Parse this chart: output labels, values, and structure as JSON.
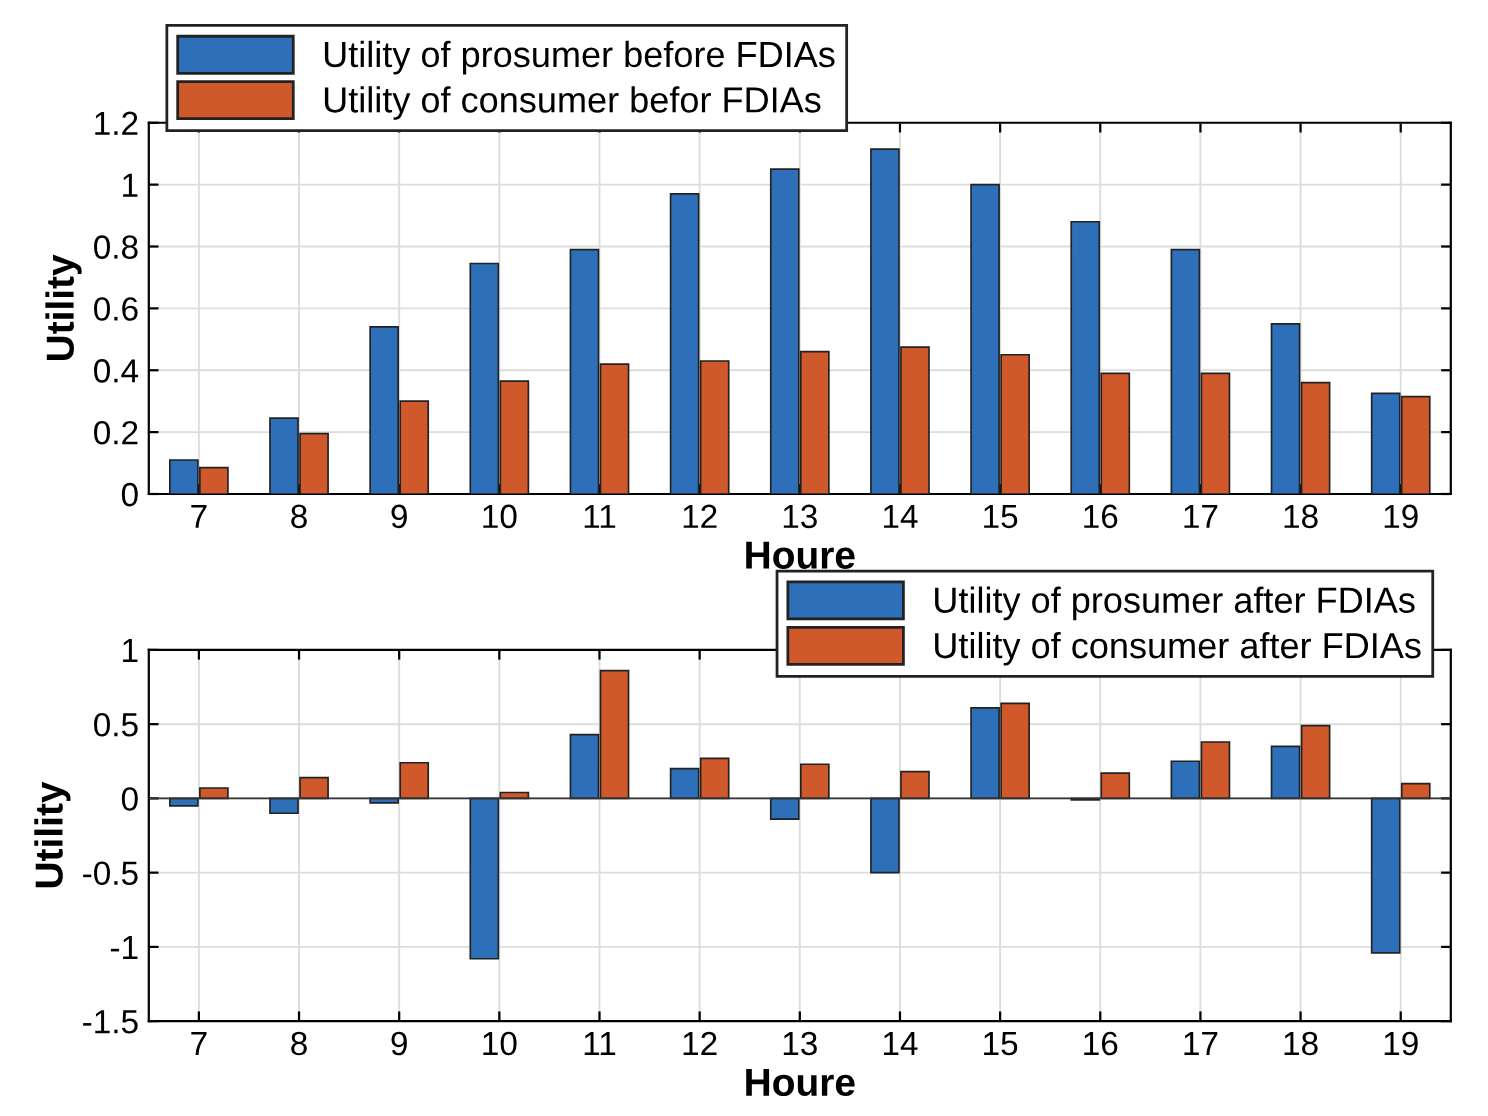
{
  "chart_data": [
    {
      "type": "bar",
      "categories": [
        "7",
        "8",
        "9",
        "10",
        "11",
        "12",
        "13",
        "14",
        "15",
        "16",
        "17",
        "18",
        "19"
      ],
      "xlabel": "Houre",
      "ylabel": "Utility",
      "ylim": [
        0,
        1.2
      ],
      "yticks": [
        0,
        0.2,
        0.4,
        0.6,
        0.8,
        1,
        1.2
      ],
      "grid": true,
      "legend": "top left",
      "series": [
        {
          "name": "Utility of prosumer before FDIAs",
          "color": "#2e6fba",
          "values": [
            0.11,
            0.245,
            0.54,
            0.745,
            0.79,
            0.97,
            1.05,
            1.115,
            1.0,
            0.88,
            0.79,
            0.55,
            0.325
          ]
        },
        {
          "name": "Utility of consumer befor FDIAs",
          "color": "#d0592b",
          "values": [
            0.085,
            0.195,
            0.3,
            0.365,
            0.42,
            0.43,
            0.46,
            0.475,
            0.45,
            0.39,
            0.39,
            0.36,
            0.315
          ]
        }
      ]
    },
    {
      "type": "bar",
      "categories": [
        "7",
        "8",
        "9",
        "10",
        "11",
        "12",
        "13",
        "14",
        "15",
        "16",
        "17",
        "18",
        "19"
      ],
      "xlabel": "Houre",
      "ylabel": "Utility",
      "ylim": [
        -1.5,
        1
      ],
      "yticks": [
        -1.5,
        -1,
        -0.5,
        0,
        0.5,
        1
      ],
      "grid": true,
      "legend": "top right",
      "series": [
        {
          "name": "Utility of prosumer after FDIAs",
          "color": "#2e6fba",
          "values": [
            -0.05,
            -0.1,
            -0.03,
            -1.08,
            0.43,
            0.2,
            -0.14,
            -0.5,
            0.61,
            -0.01,
            0.25,
            0.35,
            -1.04
          ]
        },
        {
          "name": "Utility of consumer after FDIAs",
          "color": "#d0592b",
          "values": [
            0.07,
            0.14,
            0.24,
            0.04,
            0.86,
            0.27,
            0.23,
            0.18,
            0.64,
            0.17,
            0.38,
            0.49,
            0.1
          ]
        }
      ]
    }
  ]
}
